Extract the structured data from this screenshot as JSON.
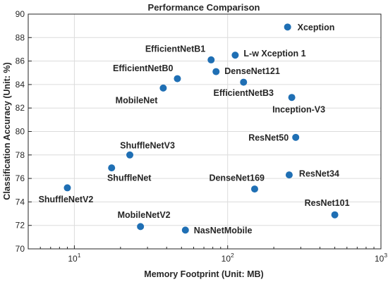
{
  "chart_data": {
    "type": "scatter",
    "title": "Performance Comparison",
    "xlabel": "Memory Footprint (Unit: MB)",
    "ylabel": "Classification Accuracy (Unit: %)",
    "xscale": "log",
    "xlim": [
      5,
      1000
    ],
    "ylim": [
      70,
      90
    ],
    "xticks": [
      {
        "value": 10,
        "base": "10",
        "exp": "1"
      },
      {
        "value": 100,
        "base": "10",
        "exp": "2"
      },
      {
        "value": 1000,
        "base": "10",
        "exp": "3"
      }
    ],
    "yticks": [
      70,
      72,
      74,
      76,
      78,
      80,
      82,
      84,
      86,
      88,
      90
    ],
    "grid": true,
    "marker_color": "#1f6fb4",
    "points": [
      {
        "label": "Xception",
        "x": 246,
        "y": 88.9,
        "anchor": "start",
        "dx": 14,
        "dy": 0
      },
      {
        "label": "EfficientNetB1",
        "x": 78,
        "y": 86.1,
        "anchor": "end",
        "dx": -8,
        "dy": -16
      },
      {
        "label": "L-w Xception 1",
        "x": 112,
        "y": 86.5,
        "anchor": "start",
        "dx": 12,
        "dy": -3
      },
      {
        "label": "EfficientNetB0",
        "x": 47,
        "y": 84.5,
        "anchor": "end",
        "dx": -6,
        "dy": -15
      },
      {
        "label": "DenseNet121",
        "x": 84,
        "y": 85.1,
        "anchor": "start",
        "dx": 12,
        "dy": -1
      },
      {
        "label": "EfficientNetB3",
        "x": 127,
        "y": 84.2,
        "anchor": "middle",
        "dx": 0,
        "dy": 15
      },
      {
        "label": "MobileNet",
        "x": 38,
        "y": 83.7,
        "anchor": "end",
        "dx": -8,
        "dy": 17
      },
      {
        "label": "Inception-V3",
        "x": 262,
        "y": 82.9,
        "anchor": "middle",
        "dx": 10,
        "dy": 17
      },
      {
        "label": "ResNet50",
        "x": 278,
        "y": 79.5,
        "anchor": "end",
        "dx": -10,
        "dy": 0
      },
      {
        "label": "ShuffleNetV3",
        "x": 23,
        "y": 78.0,
        "anchor": "middle",
        "dx": 25,
        "dy": -14
      },
      {
        "label": "ShuffleNet",
        "x": 17.5,
        "y": 76.9,
        "anchor": "middle",
        "dx": 25,
        "dy": 14
      },
      {
        "label": "ResNet34",
        "x": 252,
        "y": 76.3,
        "anchor": "start",
        "dx": 14,
        "dy": -2
      },
      {
        "label": "ShuffleNetV2",
        "x": 9,
        "y": 75.2,
        "anchor": "middle",
        "dx": -2,
        "dy": 16
      },
      {
        "label": "DenseNet169",
        "x": 150,
        "y": 75.1,
        "anchor": "end",
        "dx": 14,
        "dy": -16
      },
      {
        "label": "ResNet101",
        "x": 500,
        "y": 72.9,
        "anchor": "middle",
        "dx": -11,
        "dy": -17
      },
      {
        "label": "MobileNetV2",
        "x": 27,
        "y": 71.9,
        "anchor": "middle",
        "dx": 5,
        "dy": -17
      },
      {
        "label": "NasNetMobile",
        "x": 53,
        "y": 71.6,
        "anchor": "start",
        "dx": 12,
        "dy": 0
      }
    ]
  }
}
